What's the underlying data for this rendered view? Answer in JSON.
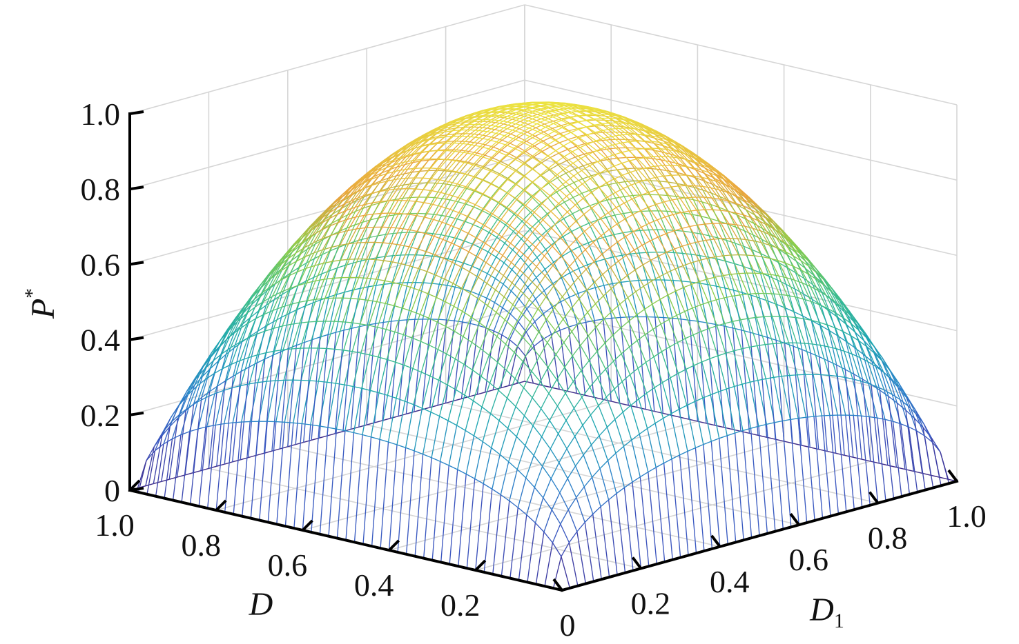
{
  "chart_data": {
    "type": "surface3d",
    "title": "",
    "zlabel": {
      "main": "P",
      "sup": "*"
    },
    "xlabel": {
      "main": "D",
      "sub": ""
    },
    "ylabel": {
      "main": "D",
      "sub": "1"
    },
    "xlim": [
      0,
      1
    ],
    "ylim": [
      0,
      1
    ],
    "zlim": [
      0,
      1
    ],
    "z_ticks": [
      {
        "value": 0,
        "label": "0"
      },
      {
        "value": 0.2,
        "label": "0.2"
      },
      {
        "value": 0.4,
        "label": "0.4"
      },
      {
        "value": 0.6,
        "label": "0.6"
      },
      {
        "value": 0.8,
        "label": "0.8"
      },
      {
        "value": 1.0,
        "label": "1.0"
      }
    ],
    "x_ticks": [
      {
        "value": 0.2,
        "label": "0.2"
      },
      {
        "value": 0.4,
        "label": "0.4"
      },
      {
        "value": 0.6,
        "label": "0.6"
      },
      {
        "value": 0.8,
        "label": "0.8"
      },
      {
        "value": 1.0,
        "label": "1.0"
      }
    ],
    "y_ticks": [
      {
        "value": 0,
        "label": "0"
      },
      {
        "value": 0.2,
        "label": "0.2"
      },
      {
        "value": 0.4,
        "label": "0.4"
      },
      {
        "value": 0.6,
        "label": "0.6"
      },
      {
        "value": 0.8,
        "label": "0.8"
      },
      {
        "value": 1.0,
        "label": "1.0"
      }
    ],
    "surface": {
      "z_formula": "4 * sqrt(D * (1 - D) * D1 * (1 - D1))",
      "grid_points": 51,
      "z_max": 1.0
    },
    "colormap": [
      "#3e2a8c",
      "#3b56c0",
      "#2a83c9",
      "#1fa7b1",
      "#3fbf8a",
      "#8ccd4a",
      "#eaa23c",
      "#e8c840",
      "#ece641"
    ],
    "grid": true
  }
}
